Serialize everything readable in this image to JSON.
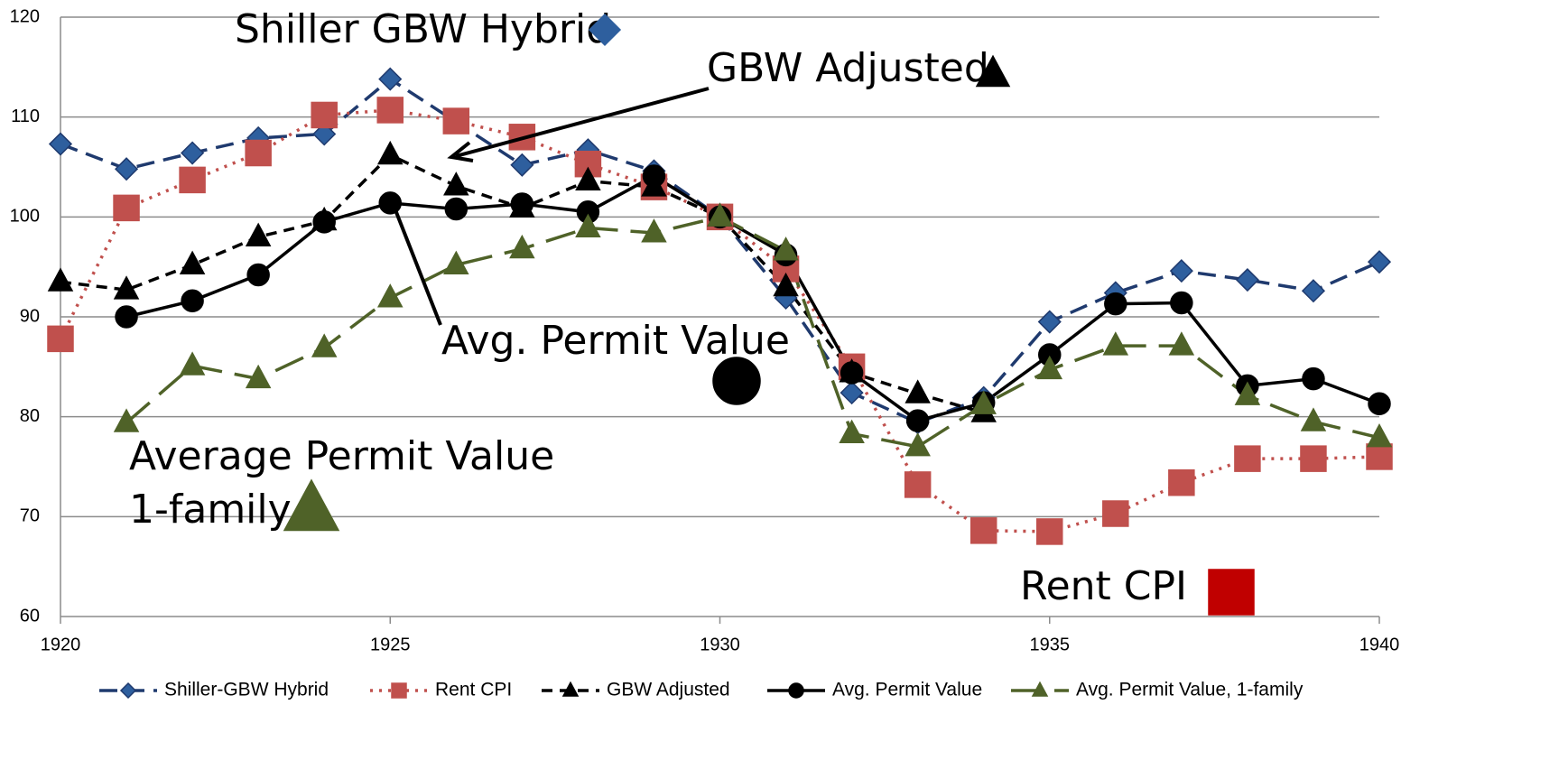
{
  "chart_data": {
    "type": "line",
    "x": [
      1920,
      1921,
      1922,
      1923,
      1924,
      1925,
      1926,
      1927,
      1928,
      1929,
      1930,
      1931,
      1932,
      1933,
      1934,
      1935,
      1936,
      1937,
      1938,
      1939,
      1940
    ],
    "xlim": [
      1920,
      1940
    ],
    "xticks": [
      1920,
      1925,
      1930,
      1935,
      1940
    ],
    "ylim": [
      60,
      120
    ],
    "yticks": [
      60,
      70,
      80,
      90,
      100,
      110,
      120
    ],
    "grid": true,
    "series": [
      {
        "name": "Shiller-GBW Hybrid",
        "color": "#1f3a6e",
        "values": [
          107.3,
          104.8,
          106.4,
          107.9,
          108.3,
          113.8,
          109.5,
          105.2,
          106.7,
          104.6,
          100,
          91.9,
          82.4,
          79.4,
          81.9,
          89.5,
          92.4,
          94.6,
          93.7,
          92.6,
          95.5
        ]
      },
      {
        "name": "Rent CPI",
        "color": "#c0504d",
        "values": [
          87.8,
          100.9,
          103.7,
          106.4,
          110.2,
          110.7,
          109.6,
          108.0,
          105.3,
          103.0,
          100.0,
          94.8,
          85.0,
          73.2,
          68.6,
          68.5,
          70.3,
          73.4,
          75.8,
          75.8,
          76.0
        ]
      },
      {
        "name": "GBW Adjusted",
        "color": "#000000",
        "values": [
          93.5,
          92.7,
          95.2,
          98.0,
          99.6,
          106.2,
          103.1,
          100.9,
          103.6,
          103.0,
          100,
          93.0,
          84.4,
          82.3,
          80.4,
          null,
          null,
          null,
          null,
          null,
          null
        ]
      },
      {
        "name": "Avg. Permit Value",
        "color": "#000000",
        "values": [
          null,
          90.0,
          91.6,
          94.2,
          99.5,
          101.4,
          100.8,
          101.3,
          100.5,
          104.1,
          100,
          96.2,
          84.4,
          79.6,
          81.4,
          86.2,
          91.3,
          91.4,
          83.1,
          83.8,
          81.3
        ]
      },
      {
        "name": "Avg. Permit Value, 1-family",
        "color": "#4f6228",
        "values": [
          null,
          79.4,
          85.1,
          83.8,
          86.9,
          91.9,
          95.2,
          96.8,
          98.9,
          98.4,
          100,
          96.6,
          78.3,
          77.0,
          81.2,
          84.7,
          87.1,
          87.1,
          82.1,
          79.5,
          77.9
        ]
      }
    ],
    "annotations": [
      "Shiller GBW Hybrid",
      "GBW Adjusted",
      "Avg. Permit Value",
      "Average Permit Value",
      "1-family",
      "Rent CPI"
    ]
  }
}
